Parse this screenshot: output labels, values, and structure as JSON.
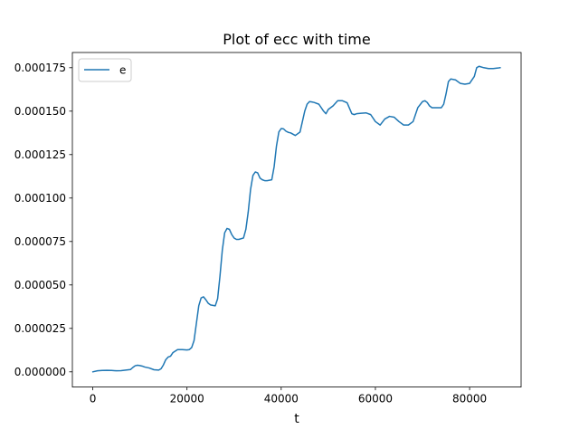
{
  "chart_data": {
    "type": "line",
    "title": "Plot of ecc with time",
    "xlabel": "t",
    "ylabel": "",
    "xlim": [
      -4330,
      90930
    ],
    "ylim": [
      -8.75e-06,
      0.00018375
    ],
    "x_ticks": [
      0,
      20000,
      40000,
      60000,
      80000
    ],
    "x_tick_labels": [
      "0",
      "20000",
      "40000",
      "60000",
      "80000"
    ],
    "y_ticks": [
      0,
      2.5e-05,
      5e-05,
      7.5e-05,
      0.0001,
      0.000125,
      0.00015,
      0.000175
    ],
    "y_tick_labels": [
      "0.000000",
      "0.000025",
      "0.000050",
      "0.000075",
      "0.000100",
      "0.000125",
      "0.000150",
      "0.000175"
    ],
    "grid": false,
    "legend_position": "upper-left",
    "series": [
      {
        "name": "e",
        "color": "#1f77b4",
        "x": [
          0,
          1000,
          2000,
          3000,
          4000,
          5000,
          6000,
          7000,
          8000,
          8500,
          9000,
          9500,
          10000,
          10500,
          11000,
          12000,
          13000,
          14000,
          14500,
          15000,
          15500,
          16000,
          16500,
          17000,
          18000,
          19000,
          20000,
          20500,
          21000,
          21500,
          22000,
          22500,
          23000,
          23500,
          24000,
          24500,
          25000,
          26000,
          26500,
          27000,
          27500,
          28000,
          28500,
          29000,
          29500,
          30000,
          30500,
          31000,
          32000,
          32500,
          33000,
          33500,
          34000,
          34500,
          35000,
          35500,
          36000,
          36500,
          37000,
          38000,
          38500,
          39000,
          39500,
          40000,
          40500,
          41000,
          41500,
          42000,
          43000,
          44000,
          44500,
          45000,
          45500,
          46000,
          46500,
          47000,
          48000,
          49000,
          49500,
          50000,
          51000,
          52000,
          53000,
          54000,
          55000,
          55500,
          56000,
          57000,
          58000,
          59000,
          60000,
          61000,
          62000,
          63000,
          64000,
          65000,
          66000,
          67000,
          68000,
          69000,
          70000,
          70500,
          71000,
          71500,
          72000,
          73000,
          74000,
          74500,
          75000,
          75500,
          76000,
          77000,
          78000,
          79000,
          80000,
          81000,
          81500,
          82000,
          83000,
          84000,
          85000,
          86000,
          86500
        ],
        "y": [
          0.0,
          6e-07,
          8e-07,
          9e-07,
          8e-07,
          6e-07,
          7e-07,
          1e-06,
          1.3e-06,
          2.5e-06,
          3.5e-06,
          3.8e-06,
          3.6e-06,
          3.3e-06,
          2.8e-06,
          2.2e-06,
          1.2e-06,
          1e-06,
          1.8e-06,
          4e-06,
          7e-06,
          8.5e-06,
          9e-06,
          1.1e-05,
          1.28e-05,
          1.28e-05,
          1.26e-05,
          1.28e-05,
          1.4e-05,
          1.8e-05,
          2.8e-05,
          3.8e-05,
          4.25e-05,
          4.32e-05,
          4.15e-05,
          3.95e-05,
          3.85e-05,
          3.8e-05,
          4.2e-05,
          5.5e-05,
          7e-05,
          8e-05,
          8.25e-05,
          8.2e-05,
          7.9e-05,
          7.7e-05,
          7.62e-05,
          7.62e-05,
          7.7e-05,
          8.2e-05,
          9.2e-05,
          0.000105,
          0.000113,
          0.000115,
          0.0001145,
          0.0001115,
          0.0001105,
          0.00011,
          0.00011,
          0.0001105,
          0.000118,
          0.00013,
          0.000138,
          0.00014,
          0.0001398,
          0.0001385,
          0.0001378,
          0.0001375,
          0.000136,
          0.000138,
          0.000144,
          0.00015,
          0.000154,
          0.0001555,
          0.0001553,
          0.000155,
          0.000154,
          0.00015,
          0.0001485,
          0.000151,
          0.000153,
          0.000156,
          0.000156,
          0.0001548,
          0.0001485,
          0.000148,
          0.0001485,
          0.0001488,
          0.000149,
          0.000148,
          0.000144,
          0.000142,
          0.0001455,
          0.000147,
          0.0001465,
          0.000144,
          0.000142,
          0.000142,
          0.000144,
          0.000152,
          0.0001555,
          0.000156,
          0.000155,
          0.000153,
          0.000152,
          0.000152,
          0.000152,
          0.000154,
          0.00016,
          0.000167,
          0.0001685,
          0.000168,
          0.000166,
          0.0001655,
          0.000166,
          0.00017,
          0.000175,
          0.0001758,
          0.000175,
          0.0001745,
          0.0001745,
          0.0001748,
          0.000175
        ]
      }
    ]
  }
}
